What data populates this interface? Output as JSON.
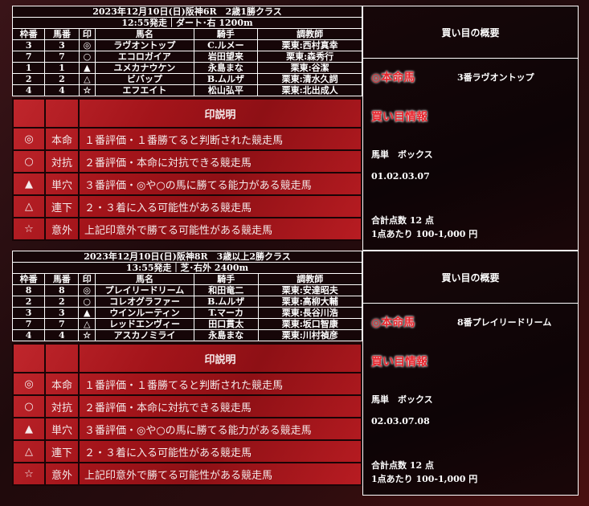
{
  "headers": [
    "枠番",
    "馬番",
    "印",
    "馬名",
    "騎手",
    "調教師"
  ],
  "legend": {
    "title": "印説明",
    "rows": [
      {
        "mark": "◎",
        "key": "本命",
        "desc": "１番評価・１番勝てると判断された競走馬"
      },
      {
        "mark": "○",
        "key": "対抗",
        "desc": "２番評価・本命に対抗できる競走馬"
      },
      {
        "mark": "▲",
        "key": "単穴",
        "desc": "３番評価・◎や○の馬に勝てる能力がある競走馬"
      },
      {
        "mark": "△",
        "key": "連下",
        "desc": "２・３着に入る可能性がある競走馬"
      },
      {
        "mark": "☆",
        "key": "意外",
        "desc": "上記印意外で勝てる可能性がある競走馬"
      }
    ]
  },
  "races": [
    {
      "title": "2023年12月10日(日)阪神6R　2歳1勝クラス",
      "info": "12:55発走｜ダート･右 1200m",
      "horses": [
        [
          "3",
          "3",
          "◎",
          "ラヴオントップ",
          "C.ルメー",
          "栗東:西村真幸"
        ],
        [
          "7",
          "7",
          "○",
          "エコロガイア",
          "岩田望来",
          "栗東:森秀行"
        ],
        [
          "1",
          "1",
          "▲",
          "ユメカナウケン",
          "永島まな",
          "栗東:谷潔"
        ],
        [
          "2",
          "2",
          "△",
          "ビバップ",
          "B.ムルザ",
          "栗東:清水久詞"
        ],
        [
          "4",
          "4",
          "☆",
          "エフエイト",
          "松山弘平",
          "栗東:北出成人"
        ]
      ],
      "summary": {
        "header": "買い目の概要",
        "honmei_label": "◎本命馬",
        "honmei": "3番ラヴオントップ",
        "info_label": "買い目情報",
        "bet": "馬単　ボックス",
        "numbers": "01.02.03.07",
        "total": "合計点数 12 点",
        "per": "1点あたり 100-1,000 円"
      }
    },
    {
      "title": "2023年12月10日(日)阪神8R　3歳以上2勝クラス",
      "info": "13:55発走｜芝･右外 2400m",
      "horses": [
        [
          "8",
          "8",
          "◎",
          "プレイリードリーム",
          "和田竜二",
          "栗東:安達昭夫"
        ],
        [
          "2",
          "2",
          "○",
          "コレオグラファー",
          "B.ムルザ",
          "栗東:高柳大輔"
        ],
        [
          "3",
          "3",
          "▲",
          "ウインルーティン",
          "T.マーカ",
          "栗東:長谷川浩"
        ],
        [
          "7",
          "7",
          "△",
          "レッドエンヴィー",
          "田口貫太",
          "栗東:坂口智康"
        ],
        [
          "4",
          "4",
          "☆",
          "アスカノミライ",
          "永島まな",
          "栗東:川村禎彦"
        ]
      ],
      "summary": {
        "header": "買い目の概要",
        "honmei_label": "◎本命馬",
        "honmei": "8番プレイリードリーム",
        "info_label": "買い目情報",
        "bet": "馬単　ボックス",
        "numbers": "02.03.07.08",
        "total": "合計点数 12 点",
        "per": "1点あたり 100-1,000 円"
      }
    }
  ]
}
